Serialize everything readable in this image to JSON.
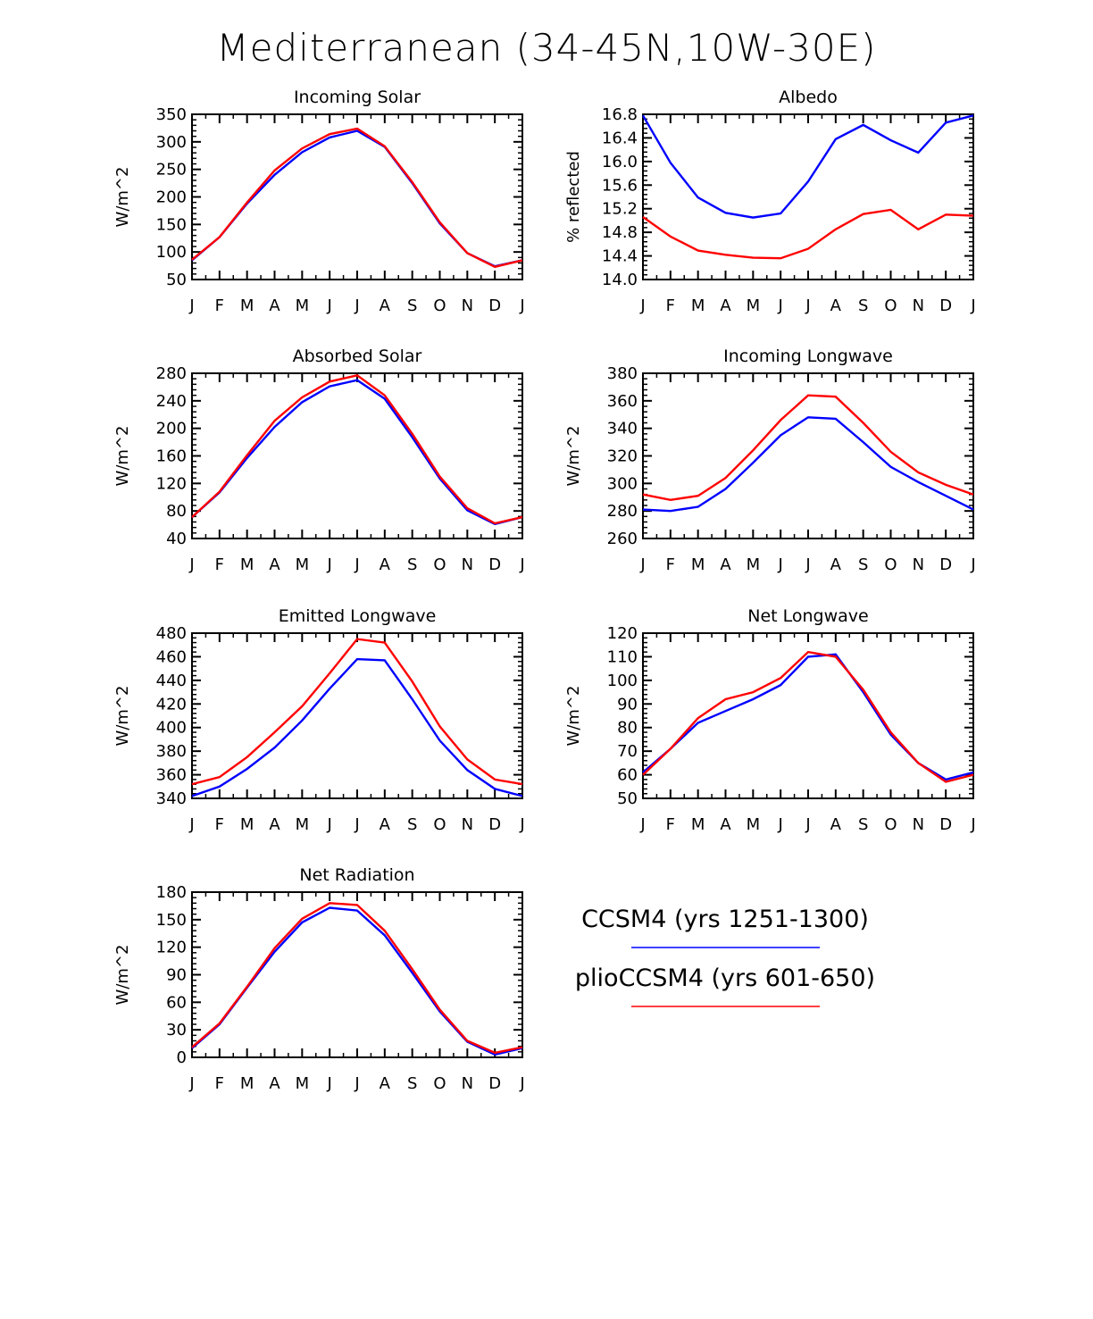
{
  "title": "Mediterranean (34-45N,10W-30E)",
  "legend": [
    {
      "label": "CCSM4 (yrs 1251-1300)",
      "color": "#0000ff"
    },
    {
      "label": "plioCCSM4 (yrs 601-650)",
      "color": "#ff0000"
    }
  ],
  "chart_data": [
    {
      "type": "line",
      "title": "Incoming Solar",
      "ylabel": "W/m^2",
      "categories": [
        "J",
        "F",
        "M",
        "A",
        "M",
        "J",
        "J",
        "A",
        "S",
        "O",
        "N",
        "D",
        "J"
      ],
      "ylim": [
        50,
        350
      ],
      "yticks": [
        50,
        100,
        150,
        200,
        250,
        300,
        350
      ],
      "ytick_labels": [
        "50",
        "100",
        "150",
        "200",
        "250",
        "300",
        "350"
      ],
      "series": [
        {
          "name": "CCSM4 (yrs 1251-1300)",
          "color": "#0000ff",
          "values": [
            85,
            127,
            188,
            240,
            281,
            308,
            320,
            291,
            225,
            152,
            98,
            74,
            85
          ]
        },
        {
          "name": "plioCCSM4 (yrs 601-650)",
          "color": "#ff0000",
          "values": [
            86,
            127,
            190,
            248,
            288,
            314,
            324,
            292,
            227,
            154,
            98,
            73,
            85
          ]
        }
      ]
    },
    {
      "type": "line",
      "title": "Albedo",
      "ylabel": "% reflected",
      "categories": [
        "J",
        "F",
        "M",
        "A",
        "M",
        "J",
        "J",
        "A",
        "S",
        "O",
        "N",
        "D",
        "J"
      ],
      "ylim": [
        14.0,
        16.8
      ],
      "yticks": [
        14.0,
        14.4,
        14.8,
        15.2,
        15.6,
        16.0,
        16.4,
        16.8
      ],
      "ytick_labels": [
        "14.0",
        "14.4",
        "14.8",
        "15.2",
        "15.6",
        "16.0",
        "16.4",
        "16.8"
      ],
      "series": [
        {
          "name": "CCSM4 (yrs 1251-1300)",
          "color": "#0000ff",
          "values": [
            16.78,
            15.98,
            15.39,
            15.13,
            15.05,
            15.12,
            15.66,
            16.38,
            16.62,
            16.36,
            16.15,
            16.66,
            16.78
          ]
        },
        {
          "name": "plioCCSM4 (yrs 601-650)",
          "color": "#ff0000",
          "values": [
            15.06,
            14.73,
            14.49,
            14.42,
            14.37,
            14.36,
            14.52,
            14.85,
            15.11,
            15.18,
            14.85,
            15.1,
            15.08
          ]
        }
      ]
    },
    {
      "type": "line",
      "title": "Absorbed Solar",
      "ylabel": "W/m^2",
      "categories": [
        "J",
        "F",
        "M",
        "A",
        "M",
        "J",
        "J",
        "A",
        "S",
        "O",
        "N",
        "D",
        "J"
      ],
      "ylim": [
        40,
        280
      ],
      "yticks": [
        40,
        80,
        120,
        160,
        200,
        240,
        280
      ],
      "ytick_labels": [
        "40",
        "80",
        "120",
        "160",
        "200",
        "240",
        "280"
      ],
      "series": [
        {
          "name": "CCSM4 (yrs 1251-1300)",
          "color": "#0000ff",
          "values": [
            71,
            107,
            157,
            202,
            238,
            261,
            270,
            243,
            187,
            127,
            81,
            61,
            71
          ]
        },
        {
          "name": "plioCCSM4 (yrs 601-650)",
          "color": "#ff0000",
          "values": [
            71,
            108,
            161,
            211,
            245,
            268,
            277,
            248,
            192,
            130,
            84,
            62,
            71
          ]
        }
      ]
    },
    {
      "type": "line",
      "title": "Incoming Longwave",
      "ylabel": "W/m^2",
      "categories": [
        "J",
        "F",
        "M",
        "A",
        "M",
        "J",
        "J",
        "A",
        "S",
        "O",
        "N",
        "D",
        "J"
      ],
      "ylim": [
        260,
        380
      ],
      "yticks": [
        260,
        280,
        300,
        320,
        340,
        360,
        380
      ],
      "ytick_labels": [
        "260",
        "280",
        "300",
        "320",
        "340",
        "360",
        "380"
      ],
      "series": [
        {
          "name": "CCSM4 (yrs 1251-1300)",
          "color": "#0000ff",
          "values": [
            281,
            280,
            283,
            296,
            315,
            335,
            348,
            347,
            330,
            312,
            301,
            291,
            281
          ]
        },
        {
          "name": "plioCCSM4 (yrs 601-650)",
          "color": "#ff0000",
          "values": [
            292,
            288,
            291,
            304,
            324,
            346,
            364,
            363,
            344,
            323,
            308,
            299,
            292
          ]
        }
      ]
    },
    {
      "type": "line",
      "title": "Emitted Longwave",
      "ylabel": "W/m^2",
      "categories": [
        "J",
        "F",
        "M",
        "A",
        "M",
        "J",
        "J",
        "A",
        "S",
        "O",
        "N",
        "D",
        "J"
      ],
      "ylim": [
        340,
        480
      ],
      "yticks": [
        340,
        360,
        380,
        400,
        420,
        440,
        460,
        480
      ],
      "ytick_labels": [
        "340",
        "360",
        "380",
        "400",
        "420",
        "440",
        "460",
        "480"
      ],
      "series": [
        {
          "name": "CCSM4 (yrs 1251-1300)",
          "color": "#0000ff",
          "values": [
            342,
            350,
            365,
            383,
            406,
            433,
            458,
            457,
            424,
            389,
            364,
            348,
            342
          ]
        },
        {
          "name": "plioCCSM4 (yrs 601-650)",
          "color": "#ff0000",
          "values": [
            352,
            358,
            375,
            396,
            418,
            446,
            475,
            472,
            439,
            401,
            373,
            356,
            352
          ]
        }
      ]
    },
    {
      "type": "line",
      "title": "Net Longwave",
      "ylabel": "W/m^2",
      "categories": [
        "J",
        "F",
        "M",
        "A",
        "M",
        "J",
        "J",
        "A",
        "S",
        "O",
        "N",
        "D",
        "J"
      ],
      "ylim": [
        50,
        120
      ],
      "yticks": [
        50,
        60,
        70,
        80,
        90,
        100,
        110,
        120
      ],
      "ytick_labels": [
        "50",
        "60",
        "70",
        "80",
        "90",
        "100",
        "110",
        "120"
      ],
      "series": [
        {
          "name": "CCSM4 (yrs 1251-1300)",
          "color": "#0000ff",
          "values": [
            61,
            71,
            82,
            87,
            92,
            98,
            110,
            111,
            95,
            77,
            65,
            58,
            61
          ]
        },
        {
          "name": "plioCCSM4 (yrs 601-650)",
          "color": "#ff0000",
          "values": [
            60,
            71,
            84,
            92,
            95,
            101,
            112,
            110,
            96,
            78,
            65,
            57,
            60
          ]
        }
      ]
    },
    {
      "type": "line",
      "title": "Net Radiation",
      "ylabel": "W/m^2",
      "categories": [
        "J",
        "F",
        "M",
        "A",
        "M",
        "J",
        "J",
        "A",
        "S",
        "O",
        "N",
        "D",
        "J"
      ],
      "ylim": [
        0,
        180
      ],
      "yticks": [
        0,
        30,
        60,
        90,
        120,
        150,
        180
      ],
      "ytick_labels": [
        "0",
        "30",
        "60",
        "90",
        "120",
        "150",
        "180"
      ],
      "series": [
        {
          "name": "CCSM4 (yrs 1251-1300)",
          "color": "#0000ff",
          "values": [
            10,
            36,
            76,
            115,
            147,
            163,
            160,
            133,
            92,
            50,
            17,
            3,
            10
          ]
        },
        {
          "name": "plioCCSM4 (yrs 601-650)",
          "color": "#ff0000",
          "values": [
            11,
            37,
            77,
            119,
            151,
            168,
            166,
            138,
            96,
            52,
            18,
            5,
            11
          ]
        }
      ]
    }
  ]
}
